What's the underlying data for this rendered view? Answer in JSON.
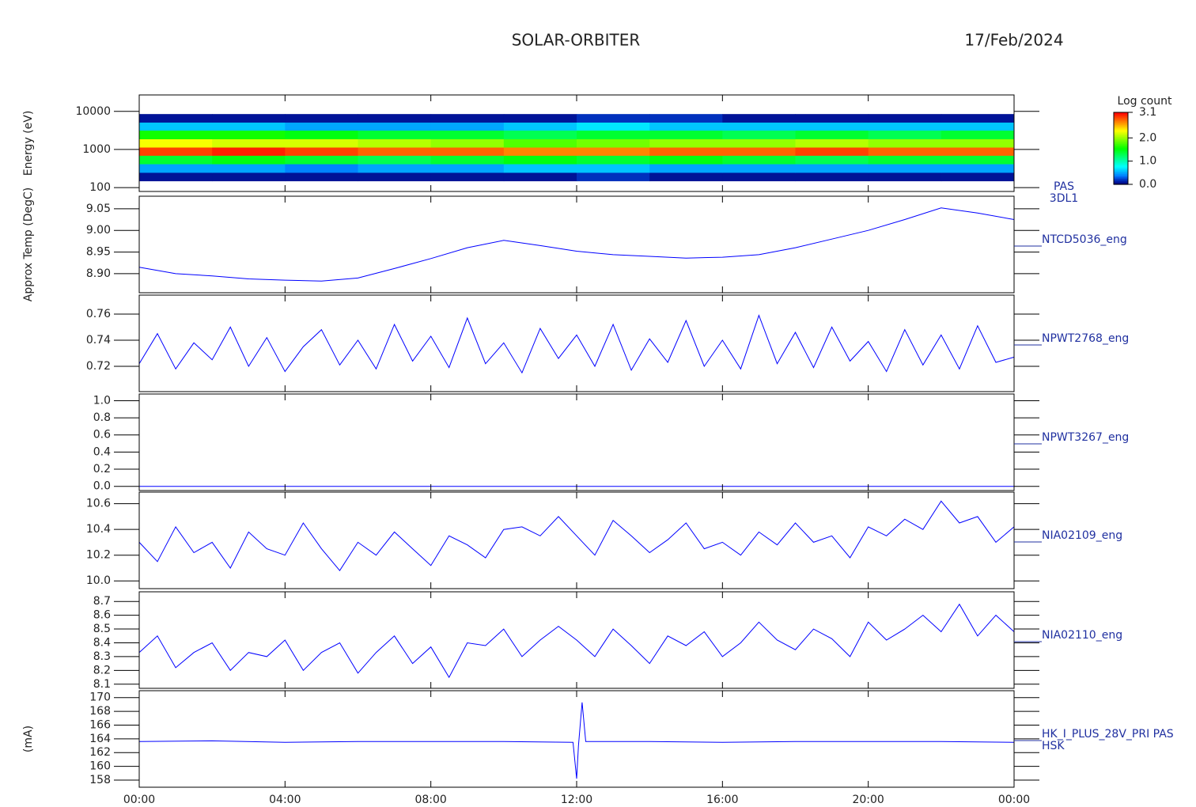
{
  "header": {
    "title": "SOLAR-ORBITER",
    "date": "17/Feb/2024"
  },
  "chart_data": [
    {
      "type": "heatmap",
      "label": [
        "PAS",
        "3DL1"
      ],
      "ylabel": "Energy (eV)",
      "yscale": "log",
      "ylim": [
        79,
        27000
      ],
      "yticks": [
        100,
        1000,
        10000
      ],
      "x": [
        0,
        2,
        4,
        6,
        8,
        10,
        12,
        14,
        16,
        18,
        20,
        22,
        24
      ],
      "y": [
        150,
        250,
        420,
        700,
        1150,
        1900,
        3200,
        5200,
        8500
      ],
      "z": [
        [
          0.1,
          0.1,
          0.1,
          0.1,
          0.1,
          0.1,
          0.2,
          0.1,
          0.1,
          0.1,
          0.1,
          0.1
        ],
        [
          0.5,
          0.5,
          0.4,
          0.5,
          0.5,
          0.6,
          0.6,
          0.5,
          0.5,
          0.5,
          0.5,
          0.5
        ],
        [
          1.4,
          1.5,
          1.4,
          1.3,
          1.4,
          1.5,
          1.4,
          1.5,
          1.4,
          1.3,
          1.4,
          1.4
        ],
        [
          2.9,
          3.0,
          2.9,
          2.8,
          2.8,
          2.7,
          2.7,
          2.8,
          2.8,
          2.9,
          2.8,
          2.8
        ],
        [
          2.3,
          2.2,
          2.2,
          2.1,
          2.0,
          1.8,
          1.9,
          2.0,
          2.0,
          2.1,
          2.0,
          2.0
        ],
        [
          1.6,
          1.6,
          1.5,
          1.4,
          1.4,
          1.3,
          1.4,
          1.4,
          1.3,
          1.4,
          1.3,
          1.4
        ],
        [
          0.6,
          0.6,
          0.5,
          0.5,
          0.5,
          0.6,
          0.7,
          0.6,
          0.6,
          0.6,
          0.6,
          0.6
        ],
        [
          0.1,
          0.1,
          0.1,
          0.1,
          0.1,
          0.1,
          0.2,
          0.2,
          0.1,
          0.1,
          0.1,
          0.1
        ]
      ],
      "colorbar": {
        "title": "Log count",
        "lim": [
          0,
          3.1
        ],
        "ticks": [
          {
            "value": 0,
            "label": "0.0"
          },
          {
            "value": 1,
            "label": "1.0"
          },
          {
            "value": 2,
            "label": "2.0"
          },
          3.1
        ]
      }
    },
    {
      "type": "line",
      "label": [
        "NTCD5036_eng"
      ],
      "ylabel": "Approx Temp (DegC)",
      "color": "#0000ff",
      "ylim": [
        8.856,
        9.079
      ],
      "yticks": [
        {
          "value": 8.9,
          "label": "8.90"
        },
        8.95,
        {
          "value": 9,
          "label": "9.00"
        },
        9.05
      ],
      "x": [
        0,
        1,
        2,
        3,
        4,
        5,
        6,
        7,
        8,
        9,
        10,
        11,
        12,
        13,
        14,
        15,
        16,
        17,
        18,
        19,
        20,
        21,
        22,
        23,
        24
      ],
      "values": [
        8.915,
        8.9,
        8.895,
        8.888,
        8.885,
        8.883,
        8.89,
        8.912,
        8.935,
        8.96,
        8.977,
        8.965,
        8.952,
        8.944,
        8.94,
        8.936,
        8.938,
        8.944,
        8.96,
        8.98,
        9.0,
        9.025,
        9.052,
        9.04,
        9.025
      ]
    },
    {
      "type": "line",
      "label": [
        "NPWT2768_eng"
      ],
      "color": "#0000ff",
      "ylim": [
        0.7006,
        0.7745
      ],
      "yticks": [
        0.72,
        0.74,
        0.76
      ],
      "x": [
        0,
        0.5,
        1,
        1.5,
        2,
        2.5,
        3,
        3.5,
        4,
        4.5,
        5,
        5.5,
        6,
        6.5,
        7,
        7.5,
        8,
        8.5,
        9,
        9.5,
        10,
        10.5,
        11,
        11.5,
        12,
        12.5,
        13,
        13.5,
        14,
        14.5,
        15,
        15.5,
        16,
        16.5,
        17,
        17.5,
        18,
        18.5,
        19,
        19.5,
        20,
        20.5,
        21,
        21.5,
        22,
        22.5,
        23,
        23.5,
        24
      ],
      "values": [
        0.722,
        0.745,
        0.718,
        0.738,
        0.725,
        0.75,
        0.72,
        0.742,
        0.716,
        0.735,
        0.748,
        0.721,
        0.74,
        0.718,
        0.752,
        0.724,
        0.743,
        0.719,
        0.757,
        0.722,
        0.738,
        0.715,
        0.749,
        0.726,
        0.744,
        0.72,
        0.752,
        0.717,
        0.741,
        0.723,
        0.755,
        0.72,
        0.74,
        0.718,
        0.759,
        0.722,
        0.746,
        0.719,
        0.75,
        0.724,
        0.739,
        0.716,
        0.748,
        0.721,
        0.744,
        0.718,
        0.751,
        0.723,
        0.727
      ]
    },
    {
      "type": "line",
      "label": [
        "NPWT3267_eng"
      ],
      "color": "#0000ff",
      "ylim": [
        -0.049,
        1.078
      ],
      "yticks": [
        {
          "value": 0,
          "label": "0.0"
        },
        0.2,
        0.4,
        0.6,
        0.8,
        {
          "value": 1,
          "label": "1.0"
        }
      ],
      "x": [
        0,
        2,
        4,
        6,
        8,
        10,
        12,
        14,
        16,
        18,
        20,
        22,
        24
      ],
      "values": [
        0,
        0,
        0,
        0,
        0,
        0,
        0,
        0,
        0,
        0,
        0,
        0,
        0
      ]
    },
    {
      "type": "line",
      "label": [
        "NIA02109_eng"
      ],
      "color": "#0000ff",
      "ylim": [
        9.94,
        10.69
      ],
      "yticks": [
        {
          "value": 10,
          "label": "10.0"
        },
        10.2,
        10.4,
        10.6
      ],
      "x": [
        0,
        0.5,
        1,
        1.5,
        2,
        2.5,
        3,
        3.5,
        4,
        4.5,
        5,
        5.5,
        6,
        6.5,
        7,
        7.5,
        8,
        8.5,
        9,
        9.5,
        10,
        10.5,
        11,
        11.5,
        12,
        12.5,
        13,
        13.5,
        14,
        14.5,
        15,
        15.5,
        16,
        16.5,
        17,
        17.5,
        18,
        18.5,
        19,
        19.5,
        20,
        20.5,
        21,
        21.5,
        22,
        22.5,
        23,
        23.5,
        24
      ],
      "values": [
        10.3,
        10.15,
        10.42,
        10.22,
        10.3,
        10.1,
        10.38,
        10.25,
        10.2,
        10.45,
        10.25,
        10.08,
        10.3,
        10.2,
        10.38,
        10.25,
        10.12,
        10.35,
        10.28,
        10.18,
        10.4,
        10.42,
        10.35,
        10.5,
        10.35,
        10.2,
        10.47,
        10.35,
        10.22,
        10.32,
        10.45,
        10.25,
        10.3,
        10.2,
        10.38,
        10.28,
        10.45,
        10.3,
        10.35,
        10.18,
        10.42,
        10.35,
        10.48,
        10.4,
        10.62,
        10.45,
        10.5,
        10.3,
        10.42
      ]
    },
    {
      "type": "line",
      "label": [
        "NIA02110_eng"
      ],
      "color": "#0000ff",
      "ylim": [
        8.07,
        8.77
      ],
      "yticks": [
        8.1,
        8.2,
        8.3,
        8.4,
        8.5,
        8.6,
        8.7
      ],
      "x": [
        0,
        0.5,
        1,
        1.5,
        2,
        2.5,
        3,
        3.5,
        4,
        4.5,
        5,
        5.5,
        6,
        6.5,
        7,
        7.5,
        8,
        8.5,
        9,
        9.5,
        10,
        10.5,
        11,
        11.5,
        12,
        12.5,
        13,
        13.5,
        14,
        14.5,
        15,
        15.5,
        16,
        16.5,
        17,
        17.5,
        18,
        18.5,
        19,
        19.5,
        20,
        20.5,
        21,
        21.5,
        22,
        22.5,
        23,
        23.5,
        24
      ],
      "values": [
        8.33,
        8.45,
        8.22,
        8.33,
        8.4,
        8.2,
        8.33,
        8.3,
        8.42,
        8.2,
        8.33,
        8.4,
        8.18,
        8.33,
        8.45,
        8.25,
        8.37,
        8.15,
        8.4,
        8.38,
        8.5,
        8.3,
        8.42,
        8.52,
        8.42,
        8.3,
        8.5,
        8.38,
        8.25,
        8.45,
        8.38,
        8.48,
        8.3,
        8.4,
        8.55,
        8.42,
        8.35,
        8.5,
        8.43,
        8.3,
        8.55,
        8.42,
        8.5,
        8.6,
        8.48,
        8.68,
        8.45,
        8.6,
        8.48
      ]
    },
    {
      "type": "line",
      "label": [
        "HK_I_PLUS_28V_PRI PAS",
        "HSK"
      ],
      "ylabel": "(mA)",
      "color": "#0000ff",
      "ylim": [
        156.96,
        171.0
      ],
      "yticks": [
        158,
        160,
        162,
        164,
        166,
        168,
        170
      ],
      "x": [
        0,
        2,
        4,
        6,
        8,
        10,
        11.9,
        12,
        12.05,
        12.15,
        12.25,
        14,
        16,
        18,
        20,
        22,
        24
      ],
      "values": [
        163.6,
        163.7,
        163.5,
        163.6,
        163.6,
        163.6,
        163.5,
        158.2,
        163,
        169.3,
        163.6,
        163.6,
        163.5,
        163.6,
        163.6,
        163.6,
        163.5
      ],
      "xlim": [
        0,
        24
      ],
      "xticks": [
        {
          "value": 0,
          "label": "00:00"
        },
        {
          "value": 4,
          "label": "04:00"
        },
        {
          "value": 8,
          "label": "08:00"
        },
        {
          "value": 12,
          "label": "12:00"
        },
        {
          "value": 16,
          "label": "16:00"
        },
        {
          "value": 20,
          "label": "20:00"
        },
        {
          "value": 24,
          "label": "00:00"
        }
      ]
    }
  ]
}
